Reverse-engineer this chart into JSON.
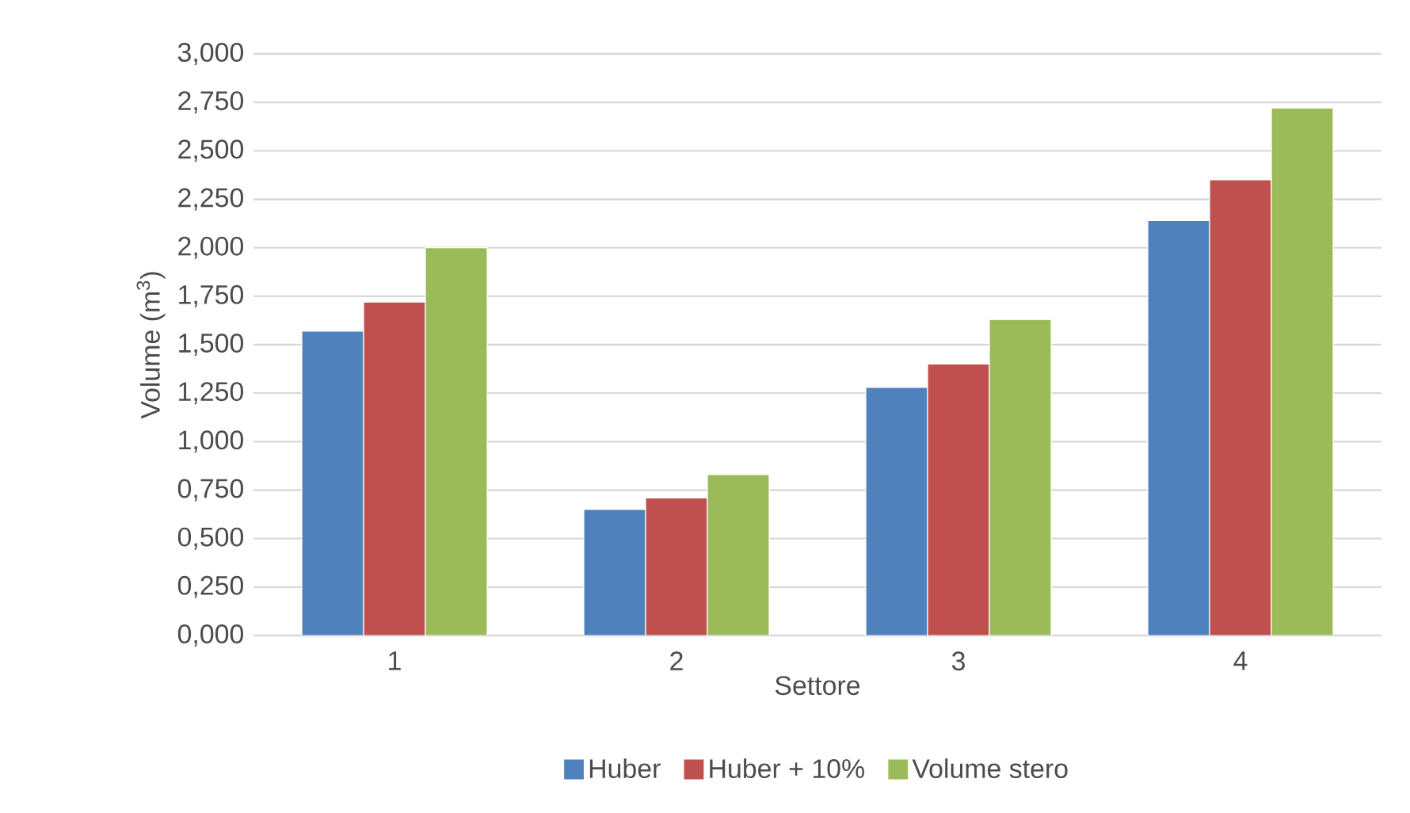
{
  "chart_data": {
    "type": "bar",
    "xlabel": "Settore",
    "ylabel": "Volume (m$^{3}$)",
    "categories": [
      "1",
      "2",
      "3",
      "4"
    ],
    "series": [
      {
        "name": "Huber",
        "color": "#4f81bd",
        "values": [
          1.57,
          0.65,
          1.28,
          2.14
        ]
      },
      {
        "name": "Huber + 10%",
        "color": "#c0504d",
        "values": [
          1.72,
          0.71,
          1.4,
          2.35
        ]
      },
      {
        "name": "Volume stero",
        "color": "#9bbb59",
        "values": [
          2.0,
          0.83,
          1.63,
          2.72
        ]
      }
    ],
    "ylim": [
      0,
      3
    ],
    "yticks": [
      {
        "value": 0,
        "label": "0,000"
      },
      {
        "value": 0.25,
        "label": "0,250"
      },
      {
        "value": 0.5,
        "label": "0,500"
      },
      {
        "value": 0.75,
        "label": "0,750"
      },
      {
        "value": 1,
        "label": "1,000"
      },
      {
        "value": 1.25,
        "label": "1,250"
      },
      {
        "value": 1.5,
        "label": "1,500"
      },
      {
        "value": 1.75,
        "label": "1,750"
      },
      {
        "value": 2,
        "label": "2,000"
      },
      {
        "value": 2.25,
        "label": "2,250"
      },
      {
        "value": 2.5,
        "label": "2,500"
      },
      {
        "value": 2.75,
        "label": "2,750"
      },
      {
        "value": 3,
        "label": "3,000"
      }
    ],
    "grid": "y",
    "legend": "bottom"
  }
}
